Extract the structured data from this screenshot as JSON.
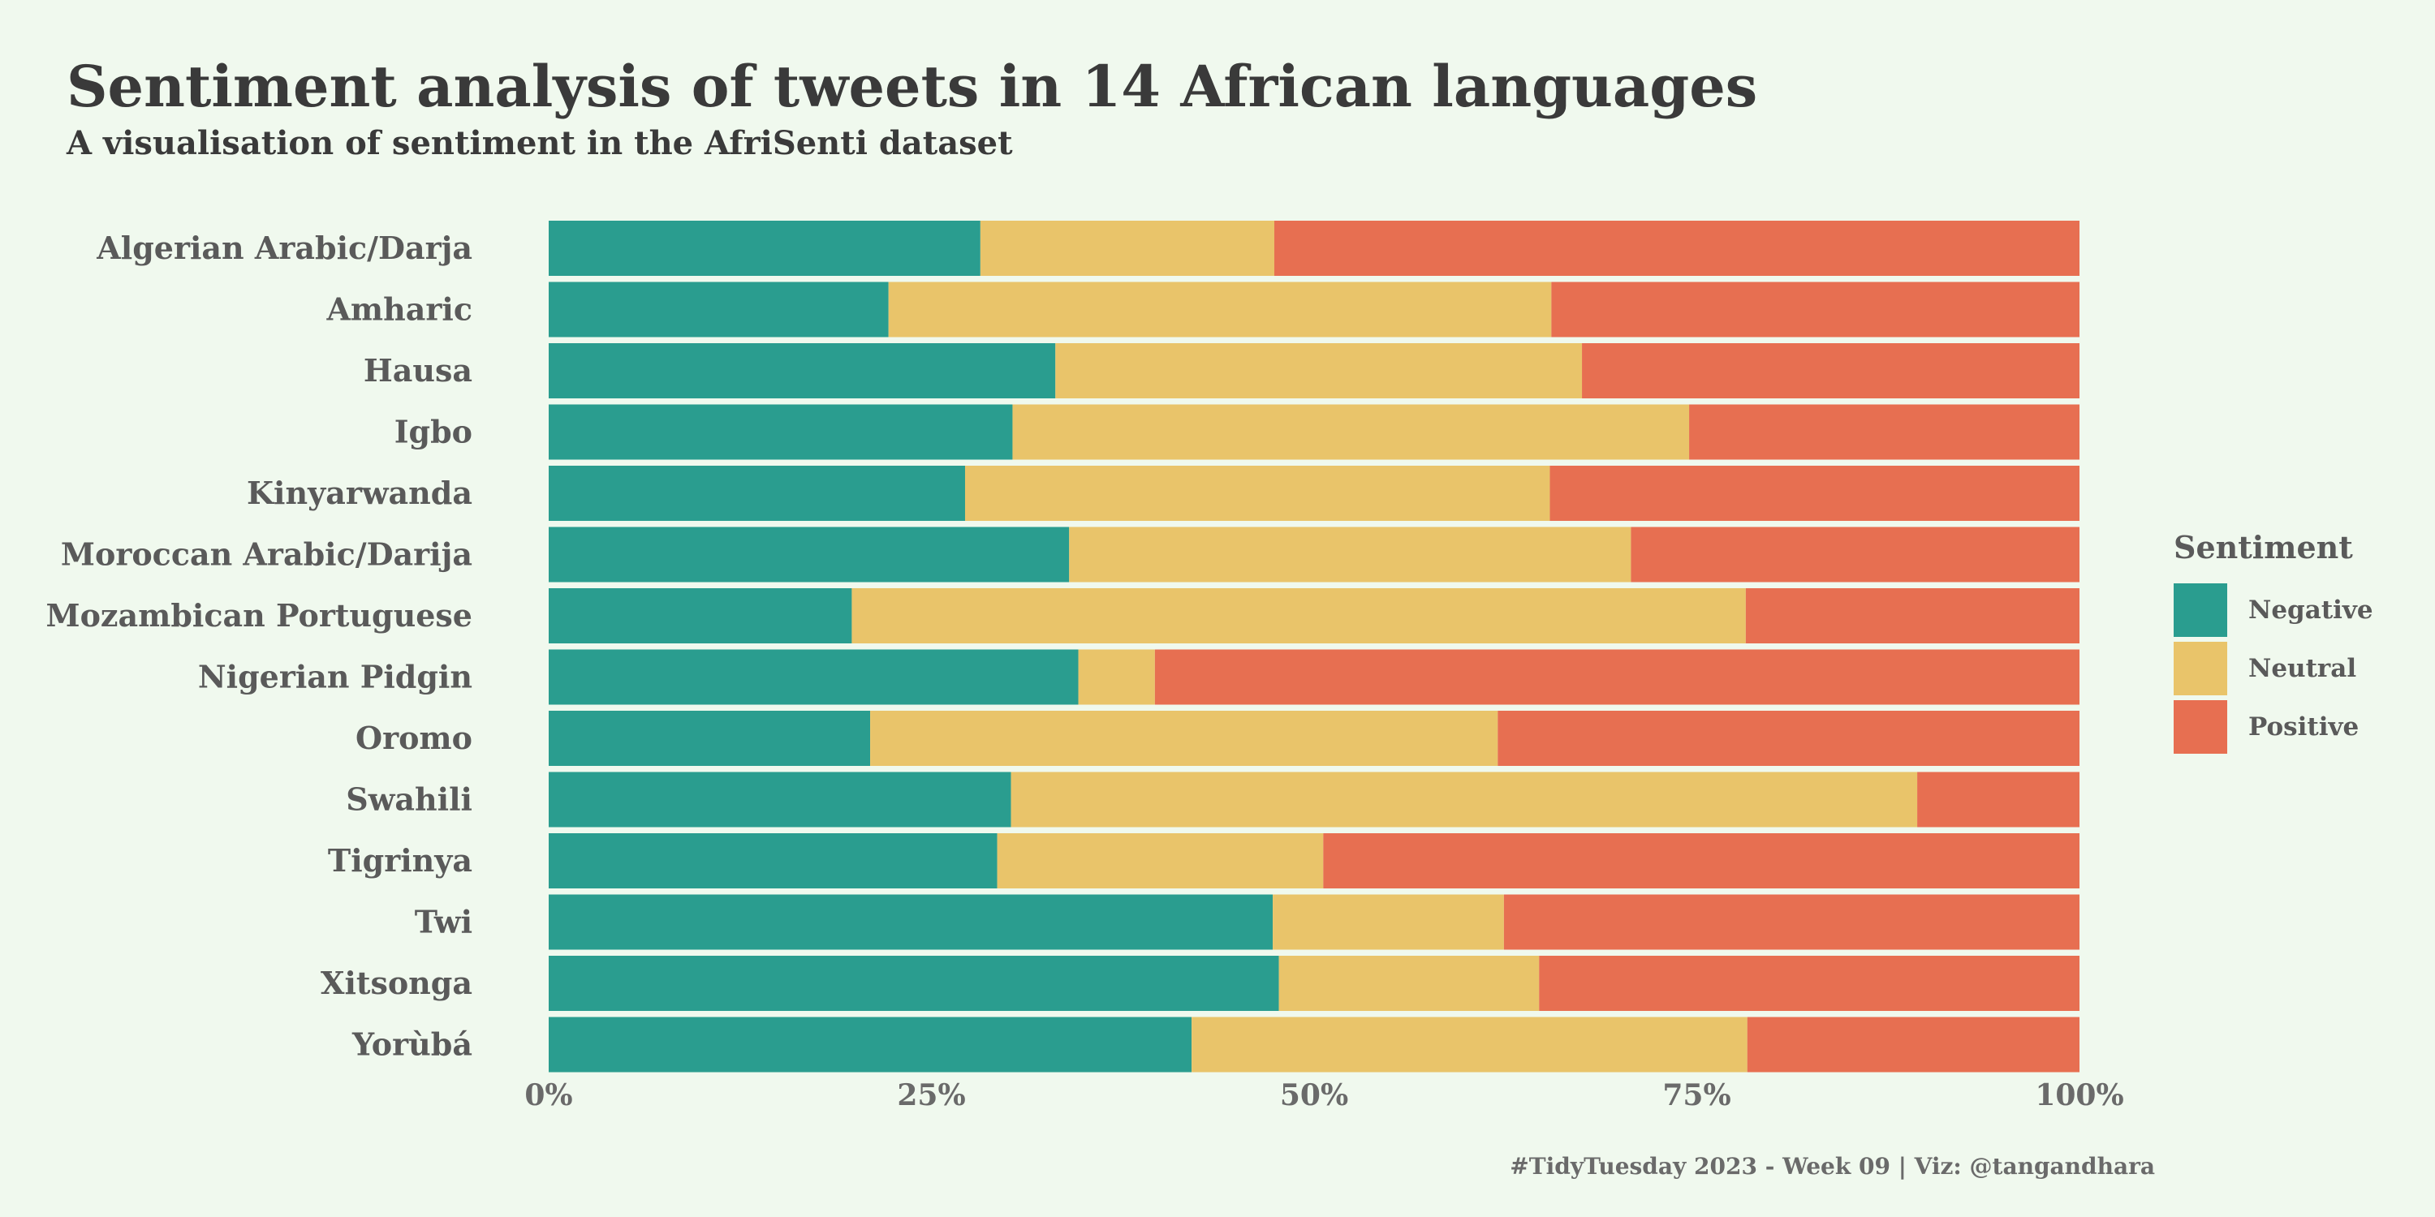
{
  "chart_data": {
    "type": "bar",
    "orientation": "horizontal",
    "stacked": true,
    "normalized": true,
    "title": "Sentiment analysis of tweets in 14 African languages",
    "subtitle": "A visualisation of sentiment in the AfriSenti dataset",
    "caption": "#TidyTuesday 2023 - Week 09 | Viz: @tangandhara",
    "categories": [
      "Algerian Arabic/Darja",
      "Amharic",
      "Hausa",
      "Igbo",
      "Kinyarwanda",
      "Moroccan Arabic/Darija",
      "Mozambican Portuguese",
      "Nigerian Pidgin",
      "Oromo",
      "Swahili",
      "Tigrinya",
      "Twi",
      "Xitsonga",
      "Yorùbá"
    ],
    "series": [
      {
        "name": "Negative",
        "color": "#2A9D8F",
        "values": [
          28.2,
          22.2,
          33.1,
          30.3,
          27.2,
          34.0,
          19.8,
          34.6,
          21.0,
          30.2,
          29.3,
          47.3,
          47.7,
          42.0
        ]
      },
      {
        "name": "Neutral",
        "color": "#E9C46A",
        "values": [
          19.2,
          43.3,
          34.4,
          44.2,
          38.2,
          36.7,
          58.4,
          5.0,
          41.0,
          59.2,
          21.3,
          15.1,
          17.0,
          36.3
        ]
      },
      {
        "name": "Positive",
        "color": "#E76F51",
        "values": [
          52.6,
          34.5,
          32.5,
          25.5,
          34.6,
          29.3,
          21.8,
          60.4,
          38.0,
          10.6,
          49.4,
          37.6,
          35.3,
          21.7
        ]
      }
    ],
    "x_ticks": [
      "0%",
      "25%",
      "50%",
      "75%",
      "100%"
    ],
    "x_tick_values": [
      0,
      25,
      50,
      75,
      100
    ],
    "xlim": [
      0,
      100
    ],
    "grid": false,
    "legend": {
      "title": "Sentiment",
      "position": "right",
      "items": [
        "Negative",
        "Neutral",
        "Positive"
      ]
    }
  },
  "colors": {
    "background": "#F0F9EE",
    "text_dark": "#3A3A3A",
    "text_mid": "#5A5A5A",
    "text_light": "#6A6A6A"
  }
}
